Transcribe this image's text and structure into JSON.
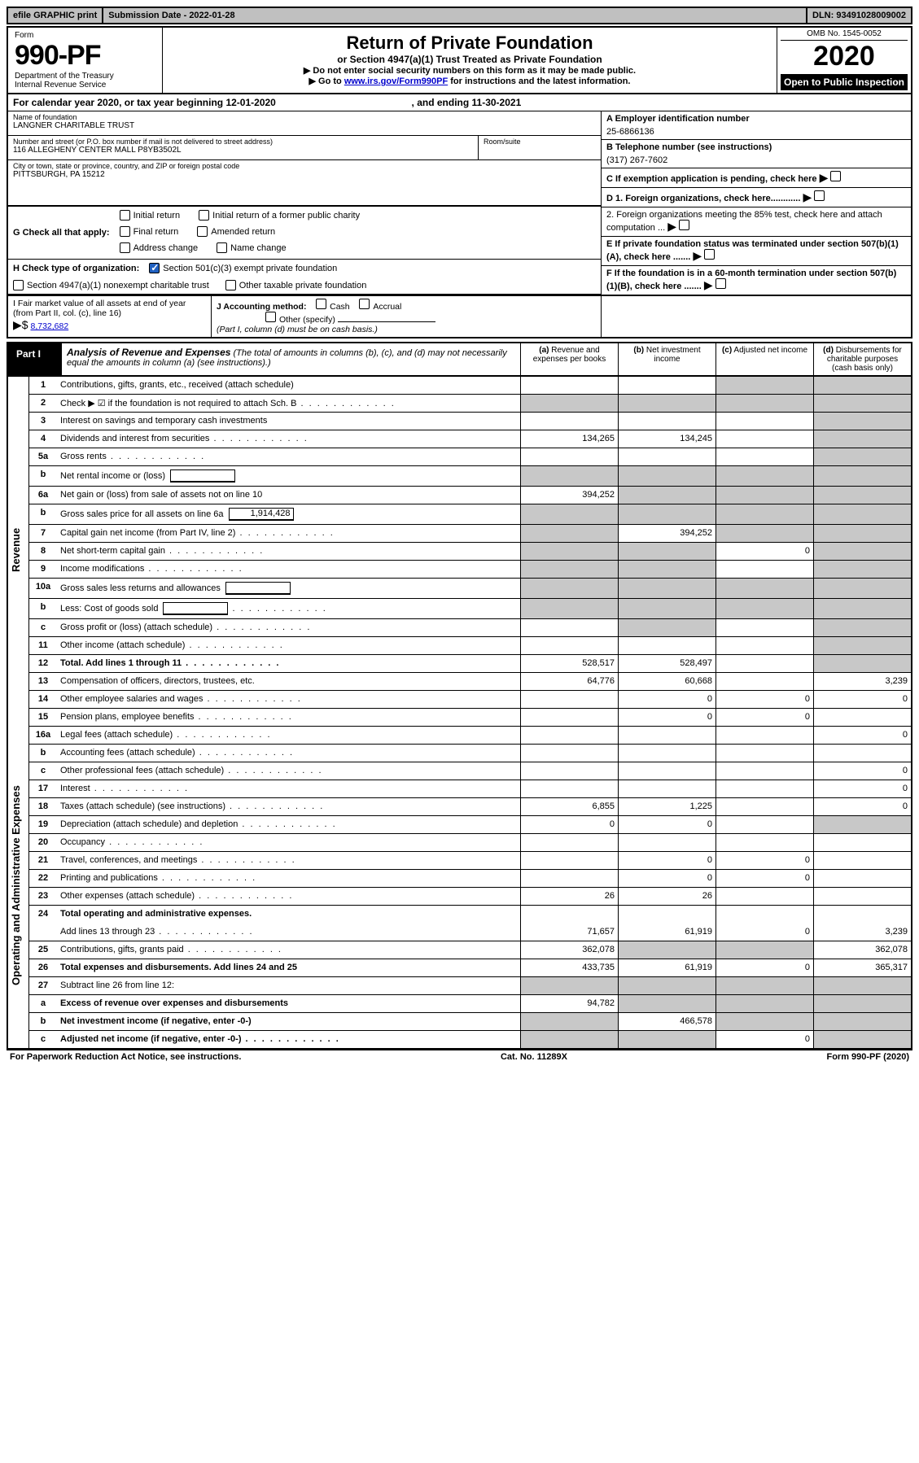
{
  "top_bar": {
    "efile_label": "efile GRAPHIC print",
    "submission_label": "Submission Date - 2022-01-28",
    "dln_label": "DLN: 93491028009002"
  },
  "header": {
    "form_word": "Form",
    "form_number": "990-PF",
    "dept": "Department of the Treasury",
    "irs": "Internal Revenue Service",
    "title": "Return of Private Foundation",
    "subtitle": "or Section 4947(a)(1) Trust Treated as Private Foundation",
    "note1": "▶ Do not enter social security numbers on this form as it may be made public.",
    "note2_pre": "▶ Go to ",
    "note2_link": "www.irs.gov/Form990PF",
    "note2_post": " for instructions and the latest information.",
    "omb": "OMB No. 1545-0052",
    "year": "2020",
    "open": "Open to Public Inspection"
  },
  "cal_year": {
    "text_pre": "For calendar year 2020, or tax year beginning ",
    "begin": "12-01-2020",
    "text_mid": ", and ending ",
    "end": "11-30-2021"
  },
  "foundation": {
    "name_lbl": "Name of foundation",
    "name": "LANGNER CHARITABLE TRUST",
    "street_lbl": "Number and street (or P.O. box number if mail is not delivered to street address)",
    "street": "116 ALLEGHENY CENTER MALL P8YB3502L",
    "room_lbl": "Room/suite",
    "room": "",
    "city_lbl": "City or town, state or province, country, and ZIP or foreign postal code",
    "city": "PITTSBURGH, PA  15212"
  },
  "right_info": {
    "a_lbl": "A Employer identification number",
    "ein": "25-6866136",
    "b_lbl": "B Telephone number (see instructions)",
    "phone": "(317) 267-7602",
    "c_lbl": "C If exemption application is pending, check here",
    "d1": "D 1. Foreign organizations, check here............",
    "d2": "2. Foreign organizations meeting the 85% test, check here and attach computation ...",
    "e": "E  If private foundation status was terminated under section 507(b)(1)(A), check here .......",
    "f": "F  If the foundation is in a 60-month termination under section 507(b)(1)(B), check here .......",
    "f_arrow": "▶"
  },
  "g_row": {
    "lbl": "G Check all that apply:",
    "o1": "Initial return",
    "o2": "Initial return of a former public charity",
    "o3": "Final return",
    "o4": "Amended return",
    "o5": "Address change",
    "o6": "Name change"
  },
  "h_row": {
    "lbl": "H Check type of organization:",
    "o1": "Section 501(c)(3) exempt private foundation",
    "o2": "Section 4947(a)(1) nonexempt charitable trust",
    "o3": "Other taxable private foundation"
  },
  "fmv": {
    "i_lbl": "I Fair market value of all assets at end of year (from Part II, col. (c), line 16)",
    "i_arrow": "▶$",
    "i_val": "8,732,682",
    "j_lbl": "J Accounting method:",
    "j_o1": "Cash",
    "j_o2": "Accrual",
    "j_o3": "Other (specify)",
    "j_note": "(Part I, column (d) must be on cash basis.)"
  },
  "part1": {
    "tab": "Part I",
    "title": "Analysis of Revenue and Expenses",
    "title_note": "(The total of amounts in columns (b), (c), and (d) may not necessarily equal the amounts in column (a) (see instructions).)",
    "col_a": "(a)",
    "col_a_txt": "Revenue and expenses per books",
    "col_b": "(b)",
    "col_b_txt": "Net investment income",
    "col_c": "(c)",
    "col_c_txt": "Adjusted net income",
    "col_d": "(d)",
    "col_d_txt": "Disbursements for charitable purposes (cash basis only)"
  },
  "sidebar": {
    "revenue": "Revenue",
    "opex": "Operating and Administrative Expenses"
  },
  "rows": [
    {
      "n": "1",
      "desc": "Contributions, gifts, grants, etc., received (attach schedule)",
      "a": "",
      "b": "",
      "c": "shaded",
      "d": "shaded"
    },
    {
      "n": "2",
      "desc": "Check ▶ ☑ if the foundation is not required to attach Sch. B",
      "a": "shaded",
      "b": "shaded",
      "c": "shaded",
      "d": "shaded",
      "dots": true
    },
    {
      "n": "3",
      "desc": "Interest on savings and temporary cash investments",
      "a": "",
      "b": "",
      "c": "",
      "d": "shaded"
    },
    {
      "n": "4",
      "desc": "Dividends and interest from securities",
      "a": "134,265",
      "b": "134,245",
      "c": "",
      "d": "shaded",
      "dots": true
    },
    {
      "n": "5a",
      "desc": "Gross rents",
      "a": "",
      "b": "",
      "c": "",
      "d": "shaded",
      "dots": true
    },
    {
      "n": "b",
      "desc": "Net rental income or (loss)",
      "inline": "",
      "a": "shaded",
      "b": "shaded",
      "c": "shaded",
      "d": "shaded"
    },
    {
      "n": "6a",
      "desc": "Net gain or (loss) from sale of assets not on line 10",
      "a": "394,252",
      "b": "shaded",
      "c": "shaded",
      "d": "shaded"
    },
    {
      "n": "b",
      "desc": "Gross sales price for all assets on line 6a",
      "inline": "1,914,428",
      "a": "shaded",
      "b": "shaded",
      "c": "shaded",
      "d": "shaded"
    },
    {
      "n": "7",
      "desc": "Capital gain net income (from Part IV, line 2)",
      "a": "shaded",
      "b": "394,252",
      "c": "shaded",
      "d": "shaded",
      "dots": true
    },
    {
      "n": "8",
      "desc": "Net short-term capital gain",
      "a": "shaded",
      "b": "shaded",
      "c": "0",
      "d": "shaded",
      "dots": true
    },
    {
      "n": "9",
      "desc": "Income modifications",
      "a": "shaded",
      "b": "shaded",
      "c": "",
      "d": "shaded",
      "dots": true
    },
    {
      "n": "10a",
      "desc": "Gross sales less returns and allowances",
      "inline": "",
      "a": "shaded",
      "b": "shaded",
      "c": "shaded",
      "d": "shaded"
    },
    {
      "n": "b",
      "desc": "Less: Cost of goods sold",
      "inline": "",
      "a": "shaded",
      "b": "shaded",
      "c": "shaded",
      "d": "shaded",
      "dots": true
    },
    {
      "n": "c",
      "desc": "Gross profit or (loss) (attach schedule)",
      "a": "",
      "b": "shaded",
      "c": "",
      "d": "shaded",
      "dots": true
    },
    {
      "n": "11",
      "desc": "Other income (attach schedule)",
      "a": "",
      "b": "",
      "c": "",
      "d": "shaded",
      "dots": true
    },
    {
      "n": "12",
      "desc": "Total. Add lines 1 through 11",
      "bold": true,
      "a": "528,517",
      "b": "528,497",
      "c": "",
      "d": "shaded",
      "dots": true
    }
  ],
  "opex_rows": [
    {
      "n": "13",
      "desc": "Compensation of officers, directors, trustees, etc.",
      "a": "64,776",
      "b": "60,668",
      "c": "",
      "d": "3,239"
    },
    {
      "n": "14",
      "desc": "Other employee salaries and wages",
      "a": "",
      "b": "0",
      "c": "0",
      "d": "0",
      "dots": true
    },
    {
      "n": "15",
      "desc": "Pension plans, employee benefits",
      "a": "",
      "b": "0",
      "c": "0",
      "d": "",
      "dots": true
    },
    {
      "n": "16a",
      "desc": "Legal fees (attach schedule)",
      "a": "",
      "b": "",
      "c": "",
      "d": "0",
      "dots": true
    },
    {
      "n": "b",
      "desc": "Accounting fees (attach schedule)",
      "a": "",
      "b": "",
      "c": "",
      "d": "",
      "dots": true
    },
    {
      "n": "c",
      "desc": "Other professional fees (attach schedule)",
      "a": "",
      "b": "",
      "c": "",
      "d": "0",
      "dots": true
    },
    {
      "n": "17",
      "desc": "Interest",
      "a": "",
      "b": "",
      "c": "",
      "d": "0",
      "dots": true
    },
    {
      "n": "18",
      "desc": "Taxes (attach schedule) (see instructions)",
      "a": "6,855",
      "b": "1,225",
      "c": "",
      "d": "0",
      "dots": true
    },
    {
      "n": "19",
      "desc": "Depreciation (attach schedule) and depletion",
      "a": "0",
      "b": "0",
      "c": "",
      "d": "shaded",
      "dots": true
    },
    {
      "n": "20",
      "desc": "Occupancy",
      "a": "",
      "b": "",
      "c": "",
      "d": "",
      "dots": true
    },
    {
      "n": "21",
      "desc": "Travel, conferences, and meetings",
      "a": "",
      "b": "0",
      "c": "0",
      "d": "",
      "dots": true
    },
    {
      "n": "22",
      "desc": "Printing and publications",
      "a": "",
      "b": "0",
      "c": "0",
      "d": "",
      "dots": true
    },
    {
      "n": "23",
      "desc": "Other expenses (attach schedule)",
      "a": "26",
      "b": "26",
      "c": "",
      "d": "",
      "dots": true
    },
    {
      "n": "24",
      "desc": "Total operating and administrative expenses.",
      "bold": true,
      "noborder": true,
      "a": "",
      "b": "",
      "c": "",
      "d": ""
    },
    {
      "n": "",
      "desc": "Add lines 13 through 23",
      "a": "71,657",
      "b": "61,919",
      "c": "0",
      "d": "3,239",
      "dots": true
    },
    {
      "n": "25",
      "desc": "Contributions, gifts, grants paid",
      "a": "362,078",
      "b": "shaded",
      "c": "shaded",
      "d": "362,078",
      "dots": true
    },
    {
      "n": "26",
      "desc": "Total expenses and disbursements. Add lines 24 and 25",
      "bold": true,
      "a": "433,735",
      "b": "61,919",
      "c": "0",
      "d": "365,317"
    },
    {
      "n": "27",
      "desc": "Subtract line 26 from line 12:",
      "a": "shaded",
      "b": "shaded",
      "c": "shaded",
      "d": "shaded"
    },
    {
      "n": "a",
      "desc": "Excess of revenue over expenses and disbursements",
      "bold": true,
      "a": "94,782",
      "b": "shaded",
      "c": "shaded",
      "d": "shaded"
    },
    {
      "n": "b",
      "desc": "Net investment income (if negative, enter -0-)",
      "bold": true,
      "a": "shaded",
      "b": "466,578",
      "c": "shaded",
      "d": "shaded"
    },
    {
      "n": "c",
      "desc": "Adjusted net income (if negative, enter -0-)",
      "bold": true,
      "a": "shaded",
      "b": "shaded",
      "c": "0",
      "d": "shaded",
      "dots": true
    }
  ],
  "footer": {
    "left": "For Paperwork Reduction Act Notice, see instructions.",
    "mid": "Cat. No. 11289X",
    "right": "Form 990-PF (2020)"
  }
}
